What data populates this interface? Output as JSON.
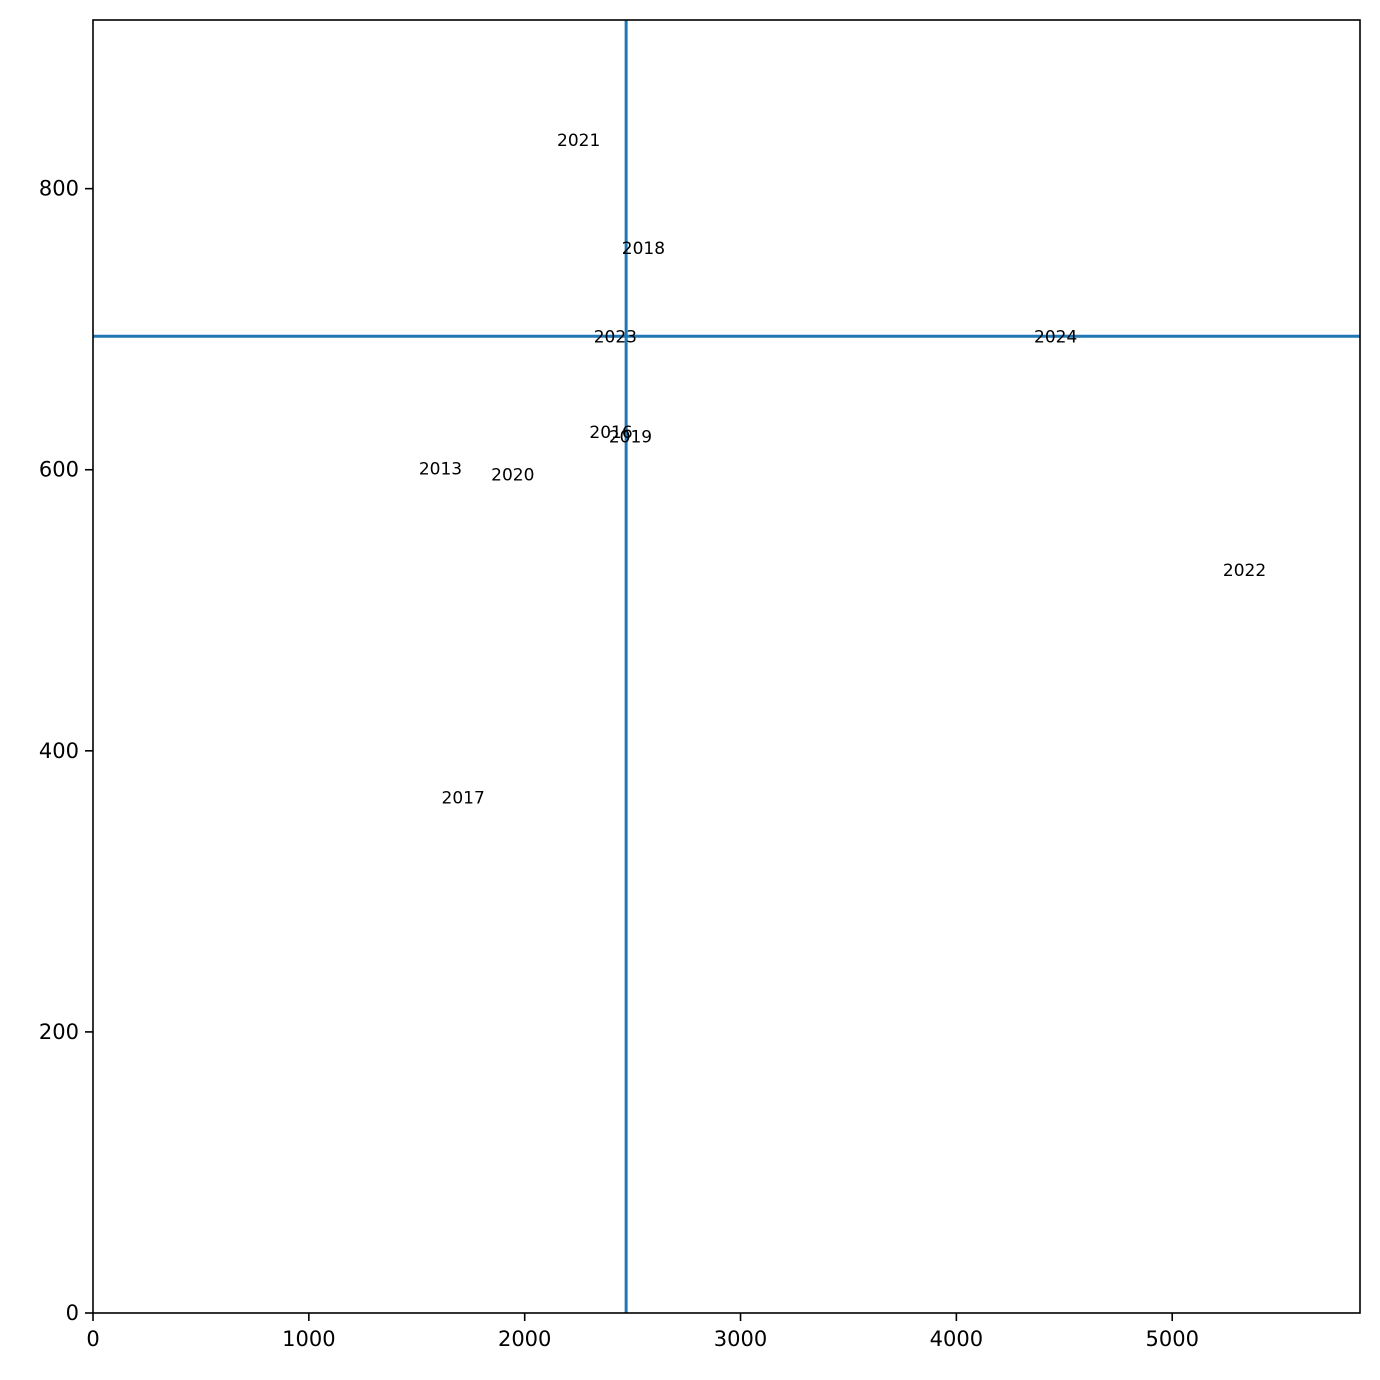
{
  "chart_data": {
    "type": "scatter",
    "title": "",
    "xlabel": "",
    "ylabel": "",
    "xlim": [
      0,
      5870
    ],
    "ylim": [
      0,
      920
    ],
    "xticks": [
      0,
      1000,
      2000,
      3000,
      4000,
      5000
    ],
    "yticks": [
      0,
      200,
      400,
      600,
      800
    ],
    "grid": false,
    "reference_lines": {
      "vertical_x": 2470,
      "horizontal_y": 695,
      "color": "#1f77b4"
    },
    "points": [
      {
        "label": "2013",
        "x": 1610,
        "y": 600
      },
      {
        "label": "2016",
        "x": 2400,
        "y": 626
      },
      {
        "label": "2017",
        "x": 1715,
        "y": 366
      },
      {
        "label": "2018",
        "x": 2550,
        "y": 757
      },
      {
        "label": "2019",
        "x": 2490,
        "y": 623
      },
      {
        "label": "2020",
        "x": 1945,
        "y": 596
      },
      {
        "label": "2021",
        "x": 2250,
        "y": 834
      },
      {
        "label": "2022",
        "x": 5335,
        "y": 528
      },
      {
        "label": "2023",
        "x": 2420,
        "y": 694
      },
      {
        "label": "2024",
        "x": 4460,
        "y": 694
      }
    ]
  }
}
